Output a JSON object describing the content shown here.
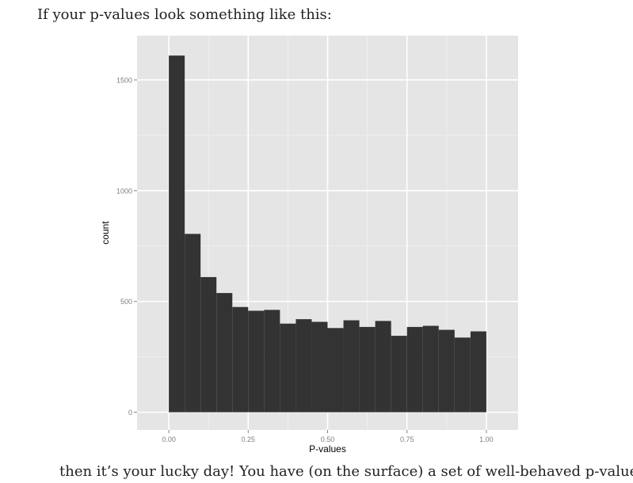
{
  "intro_text": "If your p-values look something like this:",
  "outro_text": "then it’s your lucky day! You have (on the surface) a set of well-behaved p-values.",
  "colors": {
    "panel_background": "#e5e5e5",
    "grid_major": "#ffffff",
    "grid_minor": "#f2f2f2",
    "bar_fill": "#333333",
    "tick_text": "#7f7f7f",
    "axis_title": "#000000"
  },
  "chart_data": {
    "type": "bar",
    "xlabel": "P-values",
    "ylabel": "count",
    "xlim": [
      -0.1,
      1.1
    ],
    "ylim": [
      -80,
      1700
    ],
    "grid": true,
    "x_ticks": [
      0.0,
      0.25,
      0.5,
      0.75,
      1.0
    ],
    "x_tick_labels": [
      "0.00",
      "0.25",
      "0.50",
      "0.75",
      "1.00"
    ],
    "y_ticks": [
      0,
      500,
      1000,
      1500
    ],
    "y_tick_labels": [
      "0",
      "500",
      "1000",
      "1500"
    ],
    "bin_width": 0.05,
    "bins": [
      {
        "x0": 0.0,
        "x1": 0.05,
        "count": 1610
      },
      {
        "x0": 0.05,
        "x1": 0.1,
        "count": 805
      },
      {
        "x0": 0.1,
        "x1": 0.15,
        "count": 610
      },
      {
        "x0": 0.15,
        "x1": 0.2,
        "count": 538
      },
      {
        "x0": 0.2,
        "x1": 0.25,
        "count": 475
      },
      {
        "x0": 0.25,
        "x1": 0.3,
        "count": 458
      },
      {
        "x0": 0.3,
        "x1": 0.35,
        "count": 462
      },
      {
        "x0": 0.35,
        "x1": 0.4,
        "count": 400
      },
      {
        "x0": 0.4,
        "x1": 0.45,
        "count": 420
      },
      {
        "x0": 0.45,
        "x1": 0.5,
        "count": 408
      },
      {
        "x0": 0.5,
        "x1": 0.55,
        "count": 380
      },
      {
        "x0": 0.55,
        "x1": 0.6,
        "count": 415
      },
      {
        "x0": 0.6,
        "x1": 0.65,
        "count": 385
      },
      {
        "x0": 0.65,
        "x1": 0.7,
        "count": 412
      },
      {
        "x0": 0.7,
        "x1": 0.75,
        "count": 345
      },
      {
        "x0": 0.75,
        "x1": 0.8,
        "count": 385
      },
      {
        "x0": 0.8,
        "x1": 0.85,
        "count": 390
      },
      {
        "x0": 0.85,
        "x1": 0.9,
        "count": 372
      },
      {
        "x0": 0.9,
        "x1": 0.95,
        "count": 337
      },
      {
        "x0": 0.95,
        "x1": 1.0,
        "count": 365
      }
    ]
  }
}
